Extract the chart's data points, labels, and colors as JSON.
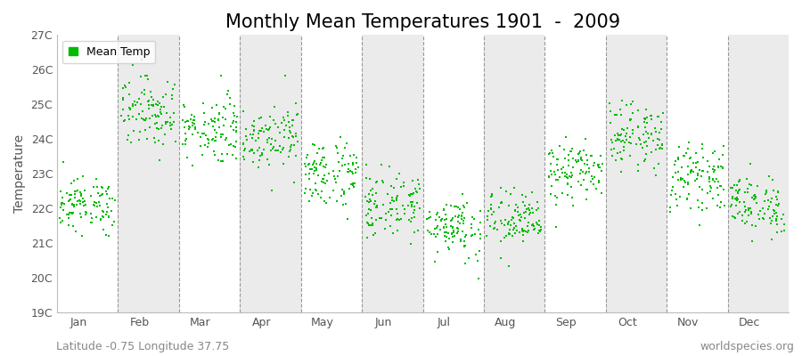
{
  "title": "Monthly Mean Temperatures 1901  -  2009",
  "ylabel": "Temperature",
  "subtitle_left": "Latitude -0.75 Longitude 37.75",
  "subtitle_right": "worldspecies.org",
  "legend_label": "Mean Temp",
  "ylim": [
    19,
    27
  ],
  "yticks": [
    19,
    20,
    21,
    22,
    23,
    24,
    25,
    26,
    27
  ],
  "ytick_labels": [
    "19C",
    "20C",
    "21C",
    "22C",
    "23C",
    "24C",
    "25C",
    "26C",
    "27C"
  ],
  "months": [
    "Jan",
    "Feb",
    "Mar",
    "Apr",
    "May",
    "Jun",
    "Jul",
    "Aug",
    "Sep",
    "Oct",
    "Nov",
    "Dec"
  ],
  "monthly_means": [
    22.1,
    24.8,
    24.3,
    24.1,
    23.0,
    22.1,
    21.5,
    21.65,
    23.05,
    24.1,
    22.9,
    22.1
  ],
  "monthly_stds": [
    0.38,
    0.52,
    0.48,
    0.45,
    0.5,
    0.48,
    0.45,
    0.42,
    0.42,
    0.45,
    0.45,
    0.42
  ],
  "n_years": 109,
  "dot_color": "#00bb00",
  "background_color": "#ffffff",
  "alt_band_color": "#ebebeb",
  "grid_color": "#999999",
  "title_fontsize": 15,
  "axis_label_fontsize": 10,
  "tick_fontsize": 9,
  "subtitle_fontsize": 9
}
